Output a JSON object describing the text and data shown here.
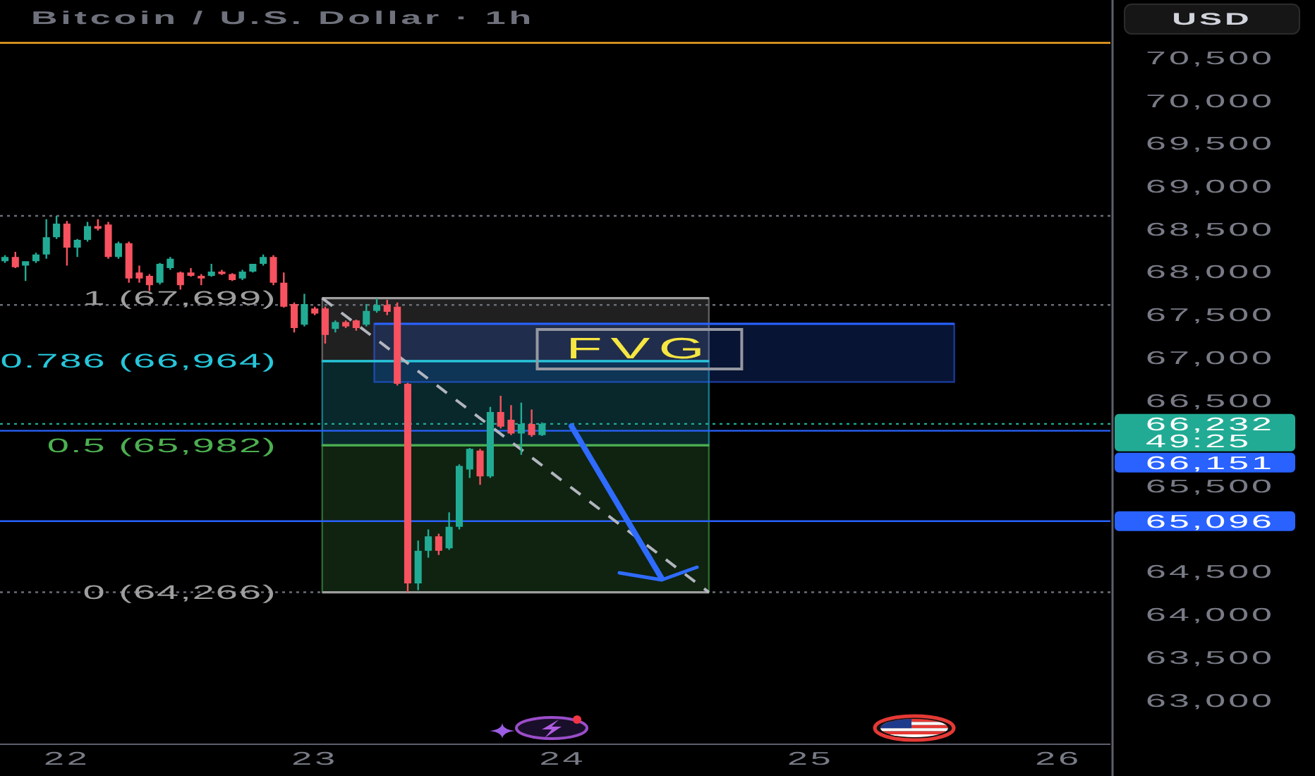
{
  "chart_data": {
    "type": "candlestick",
    "title": "Bitcoin / U.S. Dollar · 1h",
    "ylabel": "USD",
    "xlim": [
      21.73,
      26.21
    ],
    "ylim": [
      62500,
      71180
    ],
    "xticks": [
      22,
      23,
      24,
      25,
      26
    ],
    "yticks": [
      {
        "value": 63000,
        "label": "63,000"
      },
      {
        "value": 63500,
        "label": "63,500"
      },
      {
        "value": 64000,
        "label": "64,000"
      },
      {
        "value": 64500,
        "label": "64,500"
      },
      {
        "value": 65500,
        "label": "65,500"
      },
      {
        "value": 66500,
        "label": "66,500"
      },
      {
        "value": 67000,
        "label": "67,000"
      },
      {
        "value": 67500,
        "label": "67,500"
      },
      {
        "value": 68000,
        "label": "68,000"
      },
      {
        "value": 68500,
        "label": "68,500"
      },
      {
        "value": 69000,
        "label": "69,000"
      },
      {
        "value": 69500,
        "label": "69,500"
      },
      {
        "value": 70000,
        "label": "70,000"
      },
      {
        "value": 70500,
        "label": "70,500"
      }
    ],
    "series": [
      {
        "type": "line",
        "x": [
          23.03,
          24.59
        ],
        "values": [
          67699,
          67699
        ],
        "lower": [
          66964,
          66964
        ],
        "upper": [
          67699,
          67699
        ],
        "name": "1 (67,699)",
        "color": "#9e9e9e"
      },
      {
        "type": "line",
        "x": [
          23.03,
          24.59
        ],
        "values": [
          66964,
          66964
        ],
        "lower": [
          65982,
          65982
        ],
        "upper": [
          66964,
          66964
        ],
        "name": "0.786 (66,964)",
        "color": "#26c6da"
      },
      {
        "type": "line",
        "x": [
          23.03,
          24.59
        ],
        "values": [
          65982,
          65982
        ],
        "lower": [
          64266,
          64266
        ],
        "upper": [
          65982,
          65982
        ],
        "name": "0.5 (65,982)",
        "color": "#4caf50"
      },
      {
        "type": "line",
        "x": [
          23.03,
          24.59
        ],
        "values": [
          64266,
          64266
        ],
        "name": "0 (64,266)",
        "color": "#9e9e9e"
      },
      {
        "type": "line",
        "x": [
          23.24,
          25.58
        ],
        "values": [
          67400,
          67400
        ],
        "lower": [
          66720,
          66720
        ],
        "upper": [
          67400,
          67400
        ],
        "color": "#2962ff"
      },
      {
        "type": "line",
        "x": [
          23.03,
          24.59
        ],
        "values": [
          67699,
          64266
        ],
        "color": "#b2b5be",
        "line_style": "dashed"
      },
      {
        "x": [
          21.75,
          21.792,
          21.833,
          21.875,
          21.917,
          21.958,
          22,
          22.042,
          22.083,
          22.125,
          22.167,
          22.208,
          22.25,
          22.292,
          22.333,
          22.375,
          22.417,
          22.458,
          22.5,
          22.542,
          22.583,
          22.625,
          22.667,
          22.708,
          22.75,
          22.792,
          22.833,
          22.875,
          22.917,
          22.958,
          23,
          23.042,
          23.083,
          23.125,
          23.167,
          23.208,
          23.25,
          23.292,
          23.333,
          23.375,
          23.417,
          23.458,
          23.5,
          23.542,
          23.583,
          23.625,
          23.667,
          23.708,
          23.75,
          23.792,
          23.833,
          23.875,
          23.917
        ],
        "ohlc": [
          [
            68130,
            68200,
            68110,
            68180
          ],
          [
            68180,
            68240,
            68050,
            68060
          ],
          [
            68080,
            68130,
            67900,
            68130
          ],
          [
            68130,
            68230,
            68110,
            68210
          ],
          [
            68210,
            68620,
            68160,
            68410
          ],
          [
            68410,
            68660,
            68390,
            68570
          ],
          [
            68570,
            68600,
            68080,
            68290
          ],
          [
            68290,
            68390,
            68180,
            68380
          ],
          [
            68380,
            68590,
            68360,
            68540
          ],
          [
            68540,
            68620,
            68490,
            68510
          ],
          [
            68560,
            68590,
            68160,
            68180
          ],
          [
            68180,
            68360,
            68160,
            68340
          ],
          [
            68340,
            68360,
            67880,
            67930
          ],
          [
            68000,
            68080,
            67880,
            67930
          ],
          [
            67960,
            67980,
            67780,
            67850
          ],
          [
            67880,
            68110,
            67860,
            68100
          ],
          [
            68050,
            68180,
            68030,
            68160
          ],
          [
            68000,
            68010,
            67800,
            67850
          ],
          [
            68000,
            68050,
            67950,
            67960
          ],
          [
            67960,
            67980,
            67850,
            67930
          ],
          [
            67960,
            68100,
            67950,
            68010
          ],
          [
            68010,
            68030,
            67970,
            67980
          ],
          [
            67980,
            67990,
            67900,
            67910
          ],
          [
            67930,
            68030,
            67910,
            68010
          ],
          [
            68010,
            68100,
            68000,
            68100
          ],
          [
            68100,
            68210,
            68080,
            68180
          ],
          [
            68180,
            68200,
            67850,
            67880
          ],
          [
            67880,
            68000,
            67590,
            67600
          ],
          [
            67630,
            67650,
            67300,
            67350
          ],
          [
            67390,
            67750,
            67370,
            67630
          ],
          [
            67580,
            67600,
            67500,
            67520
          ],
          [
            67580,
            67600,
            67170,
            67270
          ],
          [
            67340,
            67440,
            67300,
            67420
          ],
          [
            67420,
            67440,
            67350,
            67370
          ],
          [
            67440,
            67450,
            67320,
            67350
          ],
          [
            67390,
            67630,
            67370,
            67550
          ],
          [
            67550,
            67699,
            67530,
            67620
          ],
          [
            67620,
            67680,
            67500,
            67540
          ],
          [
            67600,
            67650,
            66680,
            66700
          ],
          [
            66700,
            66710,
            64266,
            64370
          ],
          [
            64370,
            64870,
            64290,
            64750
          ],
          [
            64750,
            65000,
            64670,
            64920
          ],
          [
            64920,
            64950,
            64700,
            64750
          ],
          [
            64780,
            65200,
            64760,
            65030
          ],
          [
            65030,
            65760,
            65000,
            65740
          ],
          [
            65700,
            65950,
            65600,
            65940
          ],
          [
            65920,
            65940,
            65520,
            65620
          ],
          [
            65620,
            66430,
            65600,
            66370
          ],
          [
            66370,
            66560,
            66180,
            66200
          ],
          [
            66280,
            66450,
            66100,
            66120
          ],
          [
            66120,
            66480,
            65870,
            66230
          ],
          [
            66230,
            66400,
            66080,
            66100
          ],
          [
            66100,
            66250,
            66090,
            66232
          ]
        ],
        "colors": [
          "#22ab94",
          "#f7525f",
          "#22ab94",
          "#22ab94",
          "#22ab94",
          "#22ab94",
          "#f7525f",
          "#22ab94",
          "#22ab94",
          "#f7525f",
          "#f7525f",
          "#22ab94",
          "#f7525f",
          "#f7525f",
          "#f7525f",
          "#22ab94",
          "#22ab94",
          "#f7525f",
          "#f7525f",
          "#f7525f",
          "#22ab94",
          "#f7525f",
          "#f7525f",
          "#22ab94",
          "#22ab94",
          "#22ab94",
          "#f7525f",
          "#f7525f",
          "#f7525f",
          "#22ab94",
          "#f7525f",
          "#f7525f",
          "#22ab94",
          "#f7525f",
          "#f7525f",
          "#22ab94",
          "#22ab94",
          "#f7525f",
          "#f7525f",
          "#f7525f",
          "#22ab94",
          "#22ab94",
          "#f7525f",
          "#22ab94",
          "#22ab94",
          "#22ab94",
          "#f7525f",
          "#22ab94",
          "#f7525f",
          "#f7525f",
          "#22ab94",
          "#f7525f",
          "#22ab94"
        ]
      }
    ],
    "ref_lines": [
      {
        "axis": "y",
        "value": 70680,
        "color": "#f5a623"
      },
      {
        "axis": "y",
        "value": 68660,
        "color": "#6a6d78",
        "line_style": "dotted"
      },
      {
        "axis": "y",
        "value": 67620,
        "color": "#6a6d78",
        "line_style": "dotted"
      },
      {
        "axis": "y",
        "value": 66232,
        "label": "66,232\n49:25",
        "color": "#22ab94",
        "line_style": "dotted"
      },
      {
        "axis": "y",
        "value": 66151,
        "label": "66,151",
        "color": "#2962ff"
      },
      {
        "axis": "y",
        "value": 65096,
        "label": "65,096",
        "color": "#2962ff"
      },
      {
        "axis": "y",
        "value": 64266,
        "color": "#6a6d78",
        "line_style": "dotted"
      }
    ],
    "annotations": [
      {
        "text": "FVG",
        "x": 24.31,
        "y": 67400
      }
    ]
  }
}
